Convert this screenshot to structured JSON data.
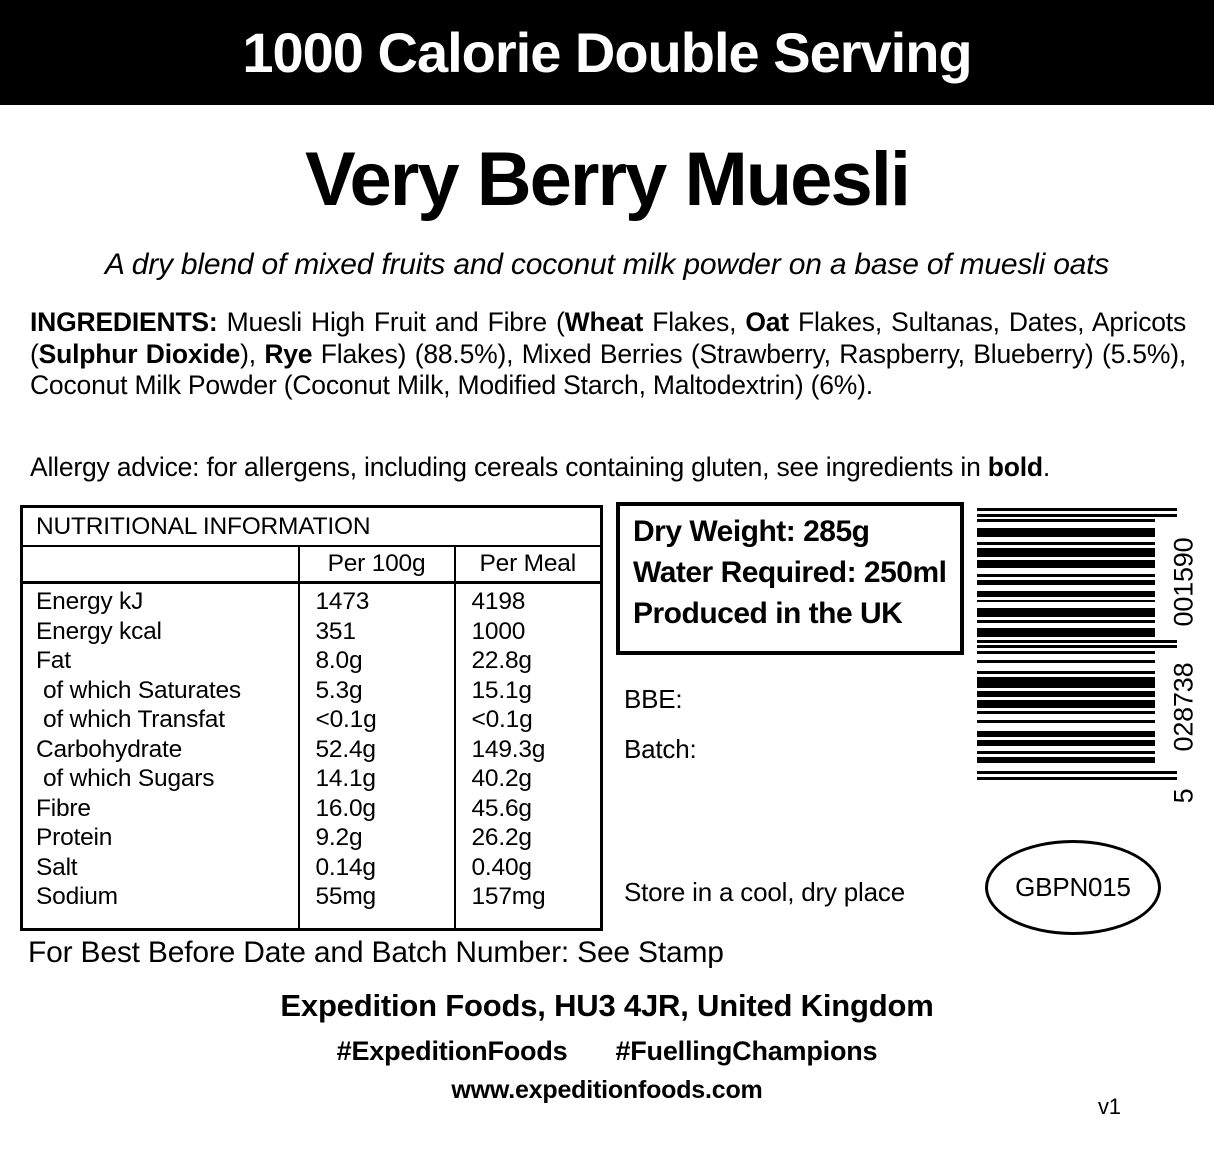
{
  "colors": {
    "ink": "#000000",
    "background": "#ffffff"
  },
  "banner": {
    "text": "1000 Calorie Double Serving"
  },
  "product": {
    "title": "Very Berry Muesli",
    "description": "A dry blend of mixed fruits and coconut milk powder on a base of muesli oats"
  },
  "ingredients": {
    "segments": [
      {
        "text": "INGREDIENTS: ",
        "bold": true
      },
      {
        "text": "Muesli High Fruit and Fibre (",
        "bold": false
      },
      {
        "text": "Wheat",
        "bold": true
      },
      {
        "text": " Flakes, ",
        "bold": false
      },
      {
        "text": "Oat",
        "bold": true
      },
      {
        "text": " Flakes, Sultanas, Dates, Apricots (",
        "bold": false
      },
      {
        "text": "Sulphur Dioxide",
        "bold": true
      },
      {
        "text": "), ",
        "bold": false
      },
      {
        "text": "Rye",
        "bold": true
      },
      {
        "text": " Flakes) (88.5%), Mixed Berries (Strawberry, Raspberry, Blueberry) (5.5%), Coconut Milk Powder (Coconut Milk, Modified Starch, Maltodextrin) (6%).",
        "bold": false
      }
    ]
  },
  "allergy": {
    "segments": [
      {
        "text": "Allergy advice: for allergens, including cereals containing gluten, see ingredients in ",
        "bold": false
      },
      {
        "text": "bold",
        "bold": true
      },
      {
        "text": ".",
        "bold": false
      }
    ]
  },
  "nutrition": {
    "title": "NUTRITIONAL INFORMATION",
    "columns": [
      "",
      "Per 100g",
      "Per Meal"
    ],
    "rows": [
      {
        "label": "Energy kJ",
        "indent": false,
        "per100g": "1473",
        "perMeal": "4198"
      },
      {
        "label": "Energy kcal",
        "indent": false,
        "per100g": "351",
        "perMeal": "1000"
      },
      {
        "label": "Fat",
        "indent": false,
        "per100g": "8.0g",
        "perMeal": "22.8g"
      },
      {
        "label": "of which Saturates",
        "indent": true,
        "per100g": "5.3g",
        "perMeal": "15.1g"
      },
      {
        "label": "of which Transfat",
        "indent": true,
        "per100g": "<0.1g",
        "perMeal": "<0.1g"
      },
      {
        "label": "Carbohydrate",
        "indent": false,
        "per100g": "52.4g",
        "perMeal": "149.3g"
      },
      {
        "label": "of which Sugars",
        "indent": true,
        "per100g": "14.1g",
        "perMeal": "40.2g"
      },
      {
        "label": "Fibre",
        "indent": false,
        "per100g": "16.0g",
        "perMeal": "45.6g"
      },
      {
        "label": "Protein",
        "indent": false,
        "per100g": "9.2g",
        "perMeal": "26.2g"
      },
      {
        "label": "Salt",
        "indent": false,
        "per100g": "0.14g",
        "perMeal": "0.40g"
      },
      {
        "label": "Sodium",
        "indent": false,
        "per100g": "55mg",
        "perMeal": "157mg"
      }
    ]
  },
  "packinfo": {
    "dry_weight": "Dry Weight: 285g",
    "water_required": "Water Required: 250ml",
    "produced": "Produced in the UK",
    "bbe_label": "BBE:",
    "batch_label": "Batch:",
    "storage": "Store in a cool, dry place",
    "product_code": "GBPN015"
  },
  "barcode": {
    "value": "5028738001590",
    "first_digit": "5",
    "left_group": "028738",
    "right_group": "001590"
  },
  "footer": {
    "stamp_note": "For Best Before Date and Batch Number: See Stamp",
    "company": "Expedition Foods, HU3 4JR, United Kingdom",
    "hashtags": [
      "#ExpeditionFoods",
      "#FuellingChampions"
    ],
    "website": "www.expeditionfoods.com",
    "version": "v1"
  }
}
